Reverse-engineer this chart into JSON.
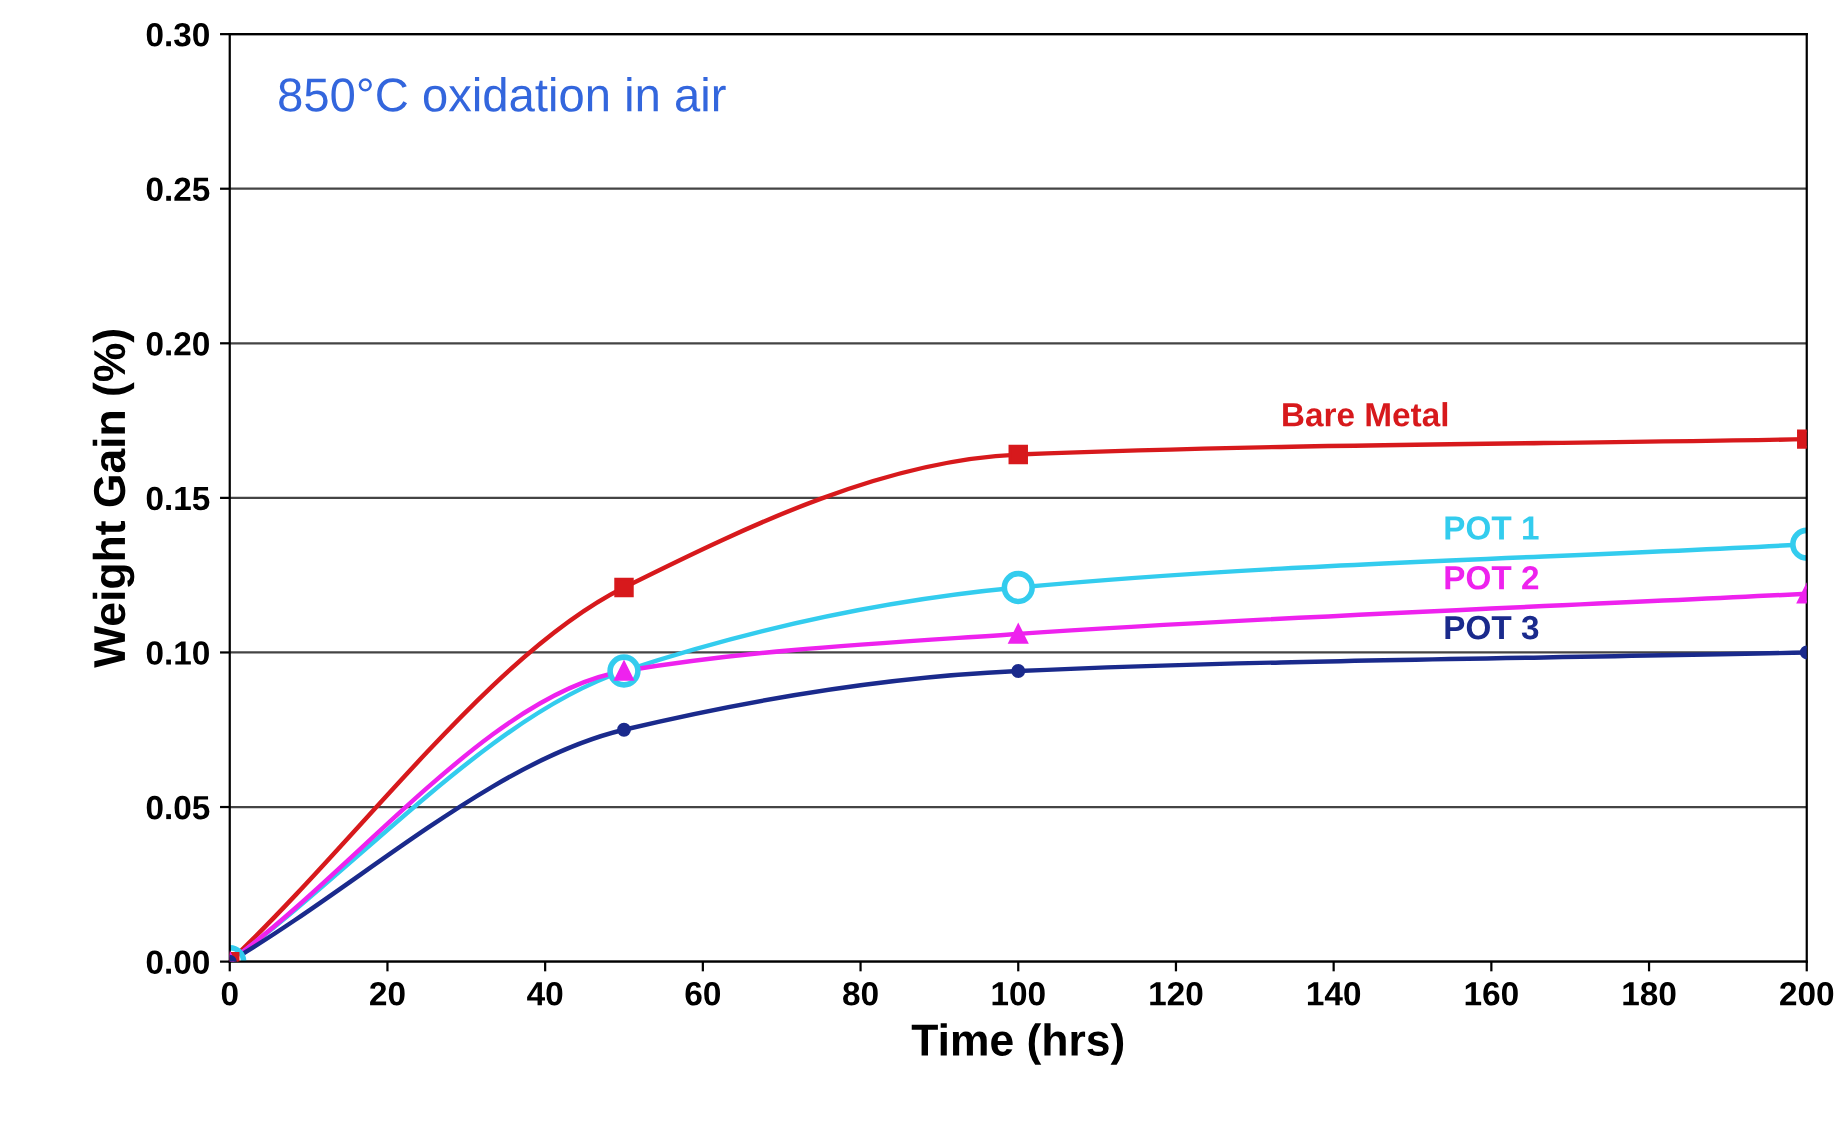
{
  "chart_data": {
    "type": "line",
    "xlabel": "Time (hrs)",
    "ylabel": "Weight Gain (%)",
    "x": [
      0,
      50,
      100,
      200
    ],
    "series": [
      {
        "name": "Bare Metal",
        "color": "#d7191c",
        "marker": "square",
        "values": [
          0,
          0.121,
          0.164,
          0.169
        ]
      },
      {
        "name": "POT 1",
        "color": "#33ccee",
        "marker": "circle",
        "values": [
          0,
          0.094,
          0.121,
          0.135
        ]
      },
      {
        "name": "POT 2",
        "color": "#ee22ee",
        "marker": "triangle",
        "values": [
          0,
          0.094,
          0.106,
          0.119
        ]
      },
      {
        "name": "POT 3",
        "color": "#1a2a8c",
        "marker": "circle",
        "values": [
          0,
          0.075,
          0.094,
          0.1
        ]
      }
    ],
    "xlim": [
      0,
      200
    ],
    "xticks": [
      0,
      20,
      40,
      60,
      80,
      100,
      120,
      140,
      160,
      180,
      200
    ],
    "ylim": [
      0,
      0.3
    ],
    "yticks": [
      {
        "value": 0,
        "label": "0.00"
      },
      {
        "value": 0.05,
        "label": "0.05"
      },
      {
        "value": 0.1,
        "label": "0.10"
      },
      {
        "value": 0.15,
        "label": "0.15"
      },
      {
        "value": 0.2,
        "label": "0.20"
      },
      {
        "value": 0.25,
        "label": "0.25"
      },
      {
        "value": 0.3,
        "label": "0.30"
      }
    ],
    "grid": "y",
    "legend": false,
    "line_style": "solid",
    "annotations": [
      "850°C oxidation in air"
    ]
  }
}
